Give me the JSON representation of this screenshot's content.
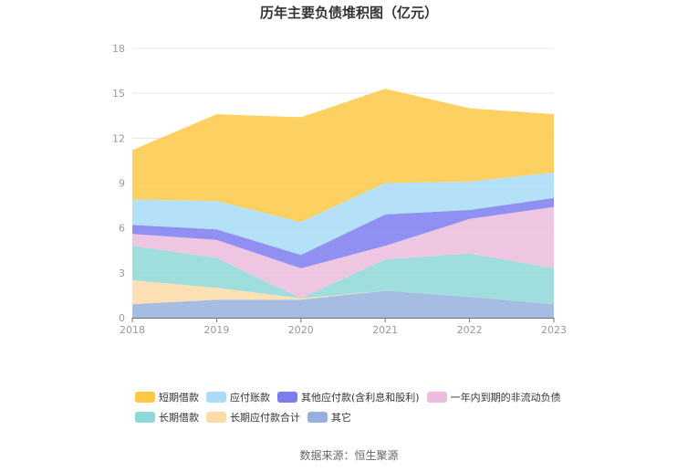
{
  "chart_data": {
    "type": "area",
    "title": "历年主要负债堆积图（亿元）",
    "source": "数据来源：恒生聚源",
    "x": [
      "2018",
      "2019",
      "2020",
      "2021",
      "2022",
      "2023"
    ],
    "ylim": [
      0,
      18
    ],
    "yticks": [
      "0",
      "3",
      "6",
      "9",
      "12",
      "15",
      "18"
    ],
    "grid": true,
    "legend_position": "bottom",
    "stacking_order_bottom_to_top": [
      "其它",
      "长期应付款合计",
      "长期借款",
      "一年内到期的非流动负债",
      "其他应付款(含利息和股利)",
      "应付账款",
      "短期借款"
    ],
    "series": [
      {
        "name": "短期借款",
        "color": "#fbc945",
        "values": [
          3.3,
          5.8,
          7.0,
          6.3,
          4.9,
          3.9
        ]
      },
      {
        "name": "应付账款",
        "color": "#a8dcf7",
        "values": [
          1.7,
          1.9,
          2.2,
          2.1,
          1.9,
          1.7
        ]
      },
      {
        "name": "其他应付款(含利息和股利)",
        "color": "#7b7cf0",
        "values": [
          0.6,
          0.7,
          0.9,
          2.1,
          0.6,
          0.6
        ]
      },
      {
        "name": "一年内到期的非流动负债",
        "color": "#ebbcdd",
        "values": [
          0.8,
          1.2,
          2.0,
          0.9,
          2.3,
          4.1
        ]
      },
      {
        "name": "长期借款",
        "color": "#8fd8d8",
        "values": [
          2.3,
          2.0,
          0.0,
          2.1,
          2.9,
          2.4
        ]
      },
      {
        "name": "长期应付款合计",
        "color": "#fddba6",
        "values": [
          1.6,
          0.8,
          0.1,
          0.0,
          0.0,
          0.0
        ]
      },
      {
        "name": "其它",
        "color": "#97b0dd",
        "values": [
          0.9,
          1.2,
          1.2,
          1.8,
          1.4,
          0.9
        ]
      }
    ]
  }
}
